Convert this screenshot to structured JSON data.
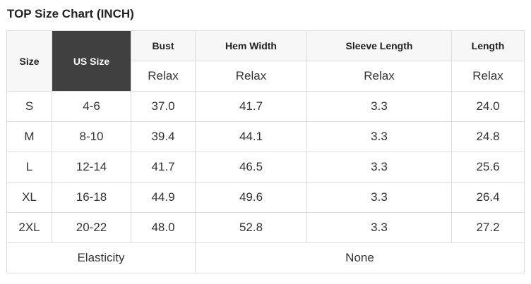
{
  "header": {
    "title": "TOP Size Chart (INCH)"
  },
  "table": {
    "columns": [
      "Size",
      "US Size",
      "Bust",
      "Hem Width",
      "Sleeve Length",
      "Length"
    ],
    "subheader": [
      "Relax",
      "Relax",
      "Relax",
      "Relax"
    ],
    "rows": [
      [
        "S",
        "4-6",
        "37.0",
        "41.7",
        "3.3",
        "24.0"
      ],
      [
        "M",
        "8-10",
        "39.4",
        "44.1",
        "3.3",
        "24.8"
      ],
      [
        "L",
        "12-14",
        "41.7",
        "46.5",
        "3.3",
        "25.6"
      ],
      [
        "XL",
        "16-18",
        "44.9",
        "49.6",
        "3.3",
        "26.4"
      ],
      [
        "2XL",
        "20-22",
        "48.0",
        "52.8",
        "3.3",
        "27.2"
      ]
    ],
    "footer": [
      "Elasticity",
      "None"
    ]
  }
}
